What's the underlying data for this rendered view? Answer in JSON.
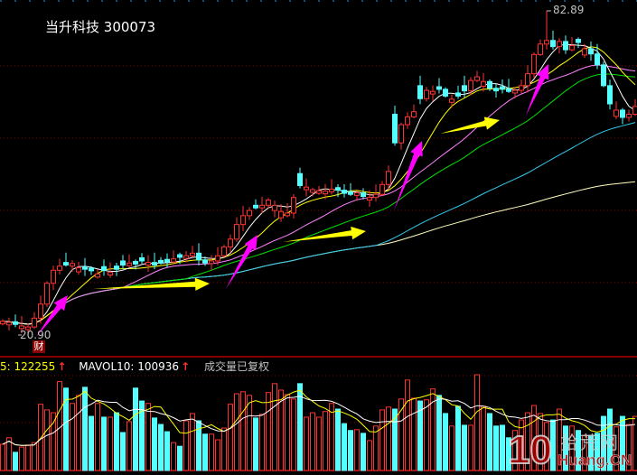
{
  "header": {
    "stock_name": "当升科技",
    "stock_code": "300073"
  },
  "annotations": {
    "high_label": "82.89",
    "low_label": "20.90",
    "badge": "财"
  },
  "volume_legend": {
    "ma5_label": "5: 122255",
    "ma10_label": "MAVOL10: 100936",
    "up_arrow": "↑",
    "note": "成交量已复权"
  },
  "watermark": {
    "number": "10",
    "cn": "拾荒网",
    "en": "Huang.CN"
  },
  "colors": {
    "up": "#ff3232",
    "down": "#54ffff",
    "ma5": "#ffffff",
    "ma10": "#ffff00",
    "ma20": "#ff80ff",
    "ma30": "#00e000",
    "ma60": "#33ccee",
    "ma120": "#ffffc0",
    "grid": "#8b0000",
    "arrow_up": "#ff00ff",
    "arrow_flat": "#ffff00"
  },
  "chart_data": {
    "type": "candlestick",
    "price_range": [
      20.9,
      82.89
    ],
    "high": 82.89,
    "low": 20.9,
    "grid": true,
    "close": [
      23.2,
      23.0,
      22.6,
      22.3,
      22.1,
      23.8,
      26.5,
      30.5,
      33.0,
      33.8,
      34.0,
      34.3,
      33.5,
      33.2,
      32.9,
      32.3,
      33.0,
      32.6,
      33.2,
      34.0,
      34.4,
      34.2,
      34.8,
      34.5,
      34.0,
      34.4,
      34.6,
      35.2,
      35.5,
      35.8,
      36.3,
      35.0,
      34.4,
      34.8,
      35.8,
      37.5,
      39.0,
      41.8,
      43.5,
      44.5,
      45.0,
      45.5,
      46.5,
      45.5,
      44.3,
      44.0,
      47.0,
      49.3,
      49.0,
      48.5,
      48.3,
      48.2,
      48.6,
      48.4,
      47.8,
      47.6,
      47.9,
      47.2,
      47.0,
      47.6,
      49.5,
      52.0,
      57.5,
      61.0,
      62.5,
      63.5,
      66.0,
      67.6,
      67.4,
      67.8,
      66.5,
      65.9,
      66.5,
      67.5,
      69.5,
      70.2,
      69.3,
      68.0,
      67.5,
      67.8,
      67.4,
      67.6,
      68.5,
      70.8,
      74.5,
      76.5,
      77.2,
      76.0,
      77.0,
      75.4,
      76.2,
      76.8,
      75.6,
      74.6,
      72.5,
      68.5,
      65.0,
      63.8,
      62.4,
      63.0,
      64.5
    ],
    "up": [
      1,
      1,
      0,
      1,
      1,
      1,
      1,
      1,
      1,
      1,
      0,
      1,
      1,
      0,
      0,
      1,
      0,
      1,
      0,
      0,
      1,
      0,
      0,
      1,
      0,
      0,
      0,
      1,
      0,
      1,
      1,
      0,
      0,
      1,
      1,
      1,
      1,
      1,
      1,
      1,
      0,
      1,
      1,
      1,
      1,
      1,
      1,
      0,
      1,
      1,
      1,
      1,
      1,
      0,
      0,
      0,
      1,
      0,
      1,
      1,
      1,
      1,
      0,
      1,
      1,
      1,
      0,
      1,
      1,
      0,
      0,
      1,
      0,
      0,
      1,
      1,
      1,
      0,
      0,
      0,
      0,
      1,
      1,
      1,
      1,
      1,
      1,
      0,
      1,
      0,
      1,
      0,
      1,
      0,
      0,
      0,
      0,
      1,
      0,
      1,
      1
    ],
    "volume": [
      65000,
      81000,
      45000,
      58000,
      63000,
      69000,
      164000,
      150000,
      143000,
      220000,
      204000,
      166000,
      186000,
      206000,
      134000,
      166000,
      132000,
      132000,
      143000,
      94000,
      121000,
      204000,
      172000,
      166000,
      130000,
      114000,
      96000,
      69000,
      60000,
      123000,
      141000,
      123000,
      90000,
      90000,
      76000,
      105000,
      164000,
      190000,
      195000,
      186000,
      130000,
      139000,
      193000,
      215000,
      199000,
      188000,
      177000,
      215000,
      132000,
      143000,
      132000,
      146000,
      166000,
      152000,
      116000,
      99000,
      101000,
      92000,
      74000,
      110000,
      150000,
      157000,
      152000,
      177000,
      224000,
      179000,
      172000,
      175000,
      202000,
      186000,
      141000,
      110000,
      159000,
      112000,
      112000,
      237000,
      159000,
      141000,
      110000,
      112000,
      81000,
      99000,
      125000,
      143000,
      161000,
      141000,
      119000,
      125000,
      152000,
      110000,
      110000,
      99000,
      87000,
      87000,
      92000,
      134000,
      152000,
      108000,
      134000,
      114000,
      134000
    ],
    "moving_averages": [
      5,
      10,
      20,
      30,
      60,
      120
    ],
    "volume_averages": [
      5,
      10
    ]
  }
}
